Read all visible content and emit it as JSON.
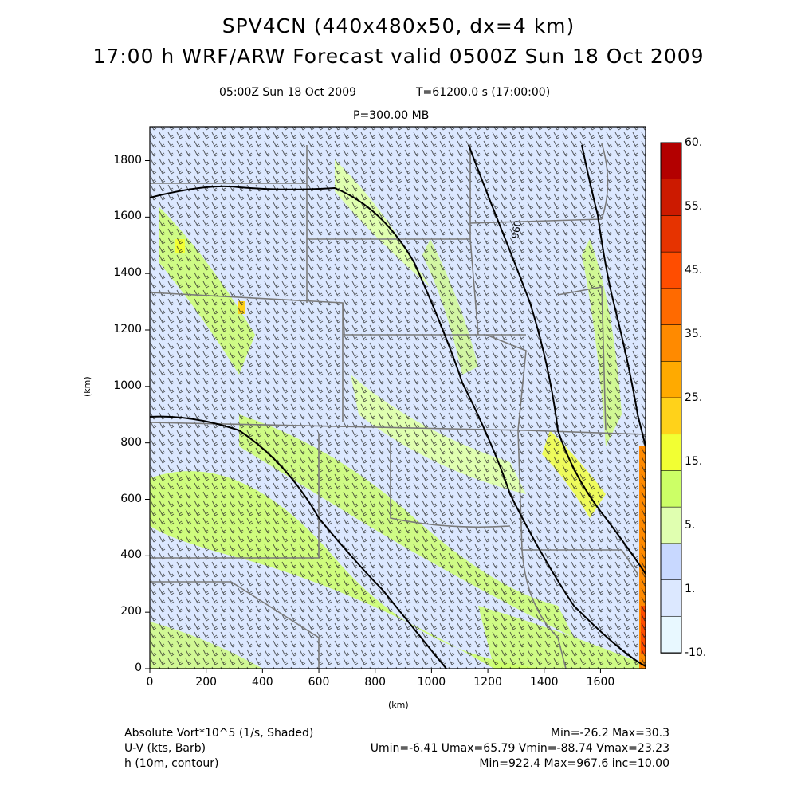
{
  "header": {
    "title_line1": "SPV4CN (440x480x50, dx=4 km)",
    "title_line2": "17:00 h WRF/ARW Forecast valid 0500Z Sun 18 Oct 2009",
    "valid_time": "05:00Z Sun 18 Oct 2009",
    "sim_time": "T=61200.0 s (17:00:00)",
    "pressure_level": "P=300.00 MB"
  },
  "axes": {
    "xlabel": "(km)",
    "ylabel": "(km)",
    "x_ticks": [
      "0",
      "200",
      "400",
      "600",
      "800",
      "1000",
      "1200",
      "1400",
      "1600"
    ],
    "y_ticks": [
      "0",
      "200",
      "400",
      "600",
      "800",
      "1000",
      "1200",
      "1400",
      "1600",
      "1800"
    ],
    "xlim": [
      0,
      1760
    ],
    "ylim": [
      0,
      1920
    ]
  },
  "colorbar": {
    "labels": [
      "60.",
      "55.",
      "45.",
      "35.",
      "25.",
      "15.",
      "5.",
      "1.",
      "-10."
    ],
    "colors": [
      "#b30000",
      "#cc1a00",
      "#e63300",
      "#ff4d00",
      "#ff6a00",
      "#ff8a00",
      "#ffaa00",
      "#ffd21a",
      "#f2ff33",
      "#ccff66",
      "#e0ffb0",
      "#c8d8ff",
      "#dce8ff",
      "#e8f8ff"
    ]
  },
  "contour": {
    "label": "960"
  },
  "footer": {
    "field1_name": "Absolute Vort*10^5 (1/s, Shaded)",
    "field1_stats": "Min=-26.2 Max=30.3",
    "field2_name": "U-V (kts, Barb)",
    "field2_stats": "Umin=-6.41 Umax=65.79 Vmin=-88.74 Vmax=23.23",
    "field3_name": "h (10m, contour)",
    "field3_stats": "Min=922.4 Max=967.6 inc=10.00"
  },
  "chart_data": {
    "type": "heatmap",
    "title": "SPV4CN (440x480x50, dx=4 km)",
    "xlabel": "(km)",
    "ylabel": "(km)",
    "xlim": [
      0,
      1760
    ],
    "ylim": [
      0,
      1920
    ],
    "colorbar_levels": [
      -10,
      1,
      5,
      15,
      25,
      35,
      45,
      55,
      60
    ],
    "fields": [
      {
        "name": "Absolute Vort*10^5",
        "units": "1/s",
        "style": "Shaded",
        "min": -26.2,
        "max": 30.3
      },
      {
        "name": "U-V",
        "units": "kts",
        "style": "Barb",
        "umin": -6.41,
        "umax": 65.79,
        "vmin": -88.74,
        "vmax": 23.23
      },
      {
        "name": "h",
        "units": "10m",
        "style": "contour",
        "min": 922.4,
        "max": 967.6,
        "inc": 10.0
      }
    ]
  }
}
